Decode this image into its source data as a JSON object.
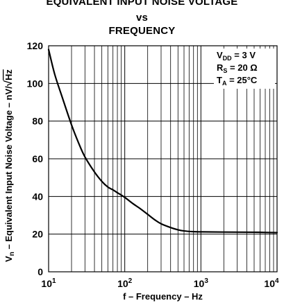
{
  "chart_data": {
    "type": "line",
    "title": [
      "EQUIVALENT INPUT NOISE VOLTAGE",
      "vs",
      "FREQUENCY"
    ],
    "xlabel": "f – Frequency – Hz",
    "ylabel": {
      "prefix": "V",
      "prefix_sub": "n",
      "text": " – Equivalent Input Noise Voltage – nV/",
      "sqrt": "√",
      "unit": "Hz"
    },
    "xscale": "log",
    "xlim": [
      10,
      10000
    ],
    "ylim": [
      0,
      120
    ],
    "xticks": [
      {
        "value": 10,
        "base": "10",
        "exp": "1"
      },
      {
        "value": 100,
        "base": "10",
        "exp": "2"
      },
      {
        "value": 1000,
        "base": "10",
        "exp": "3"
      },
      {
        "value": 10000,
        "base": "10",
        "exp": "4"
      }
    ],
    "yticks": [
      {
        "value": 0,
        "label": "0"
      },
      {
        "value": 20,
        "label": "20"
      },
      {
        "value": 40,
        "label": "40"
      },
      {
        "value": 60,
        "label": "60"
      },
      {
        "value": 80,
        "label": "80"
      },
      {
        "value": 100,
        "label": "100"
      },
      {
        "value": 120,
        "label": "120"
      }
    ],
    "grid": true,
    "conditions": [
      {
        "main": "V",
        "sub": "DD",
        "rest": " = 3 V"
      },
      {
        "main": "R",
        "sub": "S",
        "rest": " = 20 Ω"
      },
      {
        "main": "T",
        "sub": "A",
        "rest": " = 25°C"
      }
    ],
    "series": [
      {
        "color": "#000000",
        "x": [
          10,
          12,
          15,
          20,
          25,
          30,
          40,
          50,
          60,
          70,
          80,
          100,
          130,
          160,
          200,
          250,
          300,
          400,
          500,
          600,
          800,
          1000,
          2000,
          5000,
          10000
        ],
        "y": [
          118,
          105,
          93,
          78,
          68,
          61,
          53,
          48,
          45,
          43.5,
          42,
          39.5,
          36,
          33.5,
          30.5,
          27.5,
          25.5,
          23.5,
          22.3,
          21.7,
          21.3,
          21.2,
          21.1,
          21.0,
          20.8
        ]
      }
    ]
  }
}
